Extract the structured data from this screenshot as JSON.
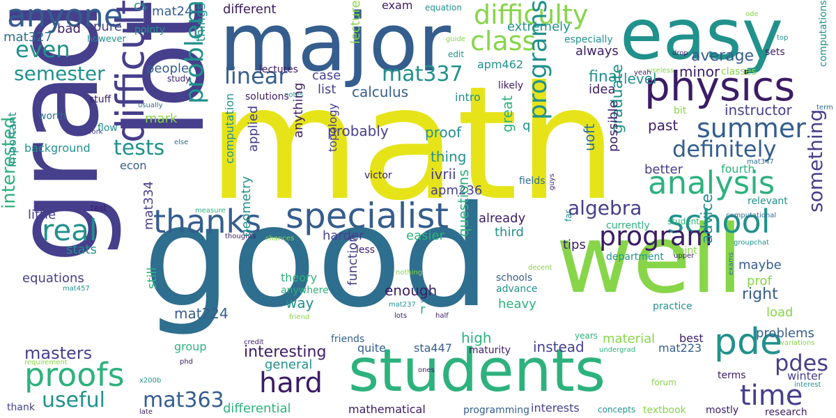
{
  "palette": {
    "purple": "#3b1c66",
    "indigo": "#453f8c",
    "blue": "#355d8e",
    "steel": "#2e6e8e",
    "teal": "#21918c",
    "green": "#2db27d",
    "lime": "#87d549",
    "yellow": "#e6e419"
  },
  "words": [
    {
      "text": "math",
      "color": "yellow"
    },
    {
      "text": "good",
      "color": "steel"
    },
    {
      "text": "well",
      "color": "lime"
    },
    {
      "text": "grad",
      "color": "indigo"
    },
    {
      "text": "lot",
      "color": "indigo"
    },
    {
      "text": "major",
      "color": "blue"
    },
    {
      "text": "easy",
      "color": "teal"
    },
    {
      "text": "students",
      "color": "green"
    },
    {
      "text": "physics",
      "color": "purple"
    },
    {
      "text": "anyone",
      "color": "blue"
    },
    {
      "text": "difficult",
      "color": "indigo"
    },
    {
      "text": "specialist",
      "color": "blue"
    },
    {
      "text": "analysis",
      "color": "green"
    },
    {
      "text": "summer",
      "color": "blue"
    },
    {
      "text": "proofs",
      "color": "green"
    },
    {
      "text": "thanks",
      "color": "blue"
    },
    {
      "text": "school",
      "color": "teal"
    },
    {
      "text": "pde",
      "color": "teal"
    },
    {
      "text": "hard",
      "color": "purple"
    },
    {
      "text": "time",
      "color": "indigo"
    },
    {
      "text": "program",
      "color": "purple"
    },
    {
      "text": "real",
      "color": "teal"
    },
    {
      "text": "even",
      "color": "teal"
    },
    {
      "text": "class",
      "color": "lime"
    },
    {
      "text": "difficulty",
      "color": "lime"
    },
    {
      "text": "definitely",
      "color": "blue"
    },
    {
      "text": "programs",
      "color": "teal"
    },
    {
      "text": "problem",
      "color": "teal"
    },
    {
      "text": "mat363",
      "color": "blue"
    },
    {
      "text": "useful",
      "color": "teal"
    },
    {
      "text": "algebra",
      "color": "indigo"
    },
    {
      "text": "linear",
      "color": "blue"
    },
    {
      "text": "tests",
      "color": "teal"
    },
    {
      "text": "semester",
      "color": "teal"
    },
    {
      "text": "mat337",
      "color": "teal"
    },
    {
      "text": "pdes",
      "color": "indigo"
    },
    {
      "text": "something",
      "color": "indigo"
    },
    {
      "text": "interested",
      "color": "green"
    },
    {
      "text": "masters",
      "color": "indigo"
    },
    {
      "text": "different",
      "color": "purple"
    },
    {
      "text": "cs",
      "color": "teal"
    },
    {
      "text": "mat244",
      "color": "blue"
    },
    {
      "text": "mat327",
      "color": "steel"
    },
    {
      "text": "bad",
      "color": "purple"
    },
    {
      "text": "pure",
      "color": "indigo"
    },
    {
      "text": "pointy",
      "color": "teal"
    },
    {
      "text": "however",
      "color": "teal"
    },
    {
      "text": "exam",
      "color": "purple"
    },
    {
      "text": "equation",
      "color": "teal"
    },
    {
      "text": "extremely",
      "color": "teal"
    },
    {
      "text": "guide",
      "color": "lime"
    },
    {
      "text": "edit",
      "color": "teal"
    },
    {
      "text": "especially",
      "color": "teal"
    },
    {
      "text": "top",
      "color": "teal"
    },
    {
      "text": "sets",
      "color": "purple"
    },
    {
      "text": "computations",
      "color": "teal"
    },
    {
      "text": "ode",
      "color": "lime"
    },
    {
      "text": "useless",
      "color": "lime"
    },
    {
      "text": "drop",
      "color": "purple"
    },
    {
      "text": "always",
      "color": "purple"
    },
    {
      "text": "average",
      "color": "blue"
    },
    {
      "text": "level",
      "color": "teal"
    },
    {
      "text": "minor",
      "color": "purple"
    },
    {
      "text": "yeah",
      "color": "purple"
    },
    {
      "text": "classes",
      "color": "lime"
    },
    {
      "text": "apm462",
      "color": "teal"
    },
    {
      "text": "final",
      "color": "teal"
    },
    {
      "text": "idea",
      "color": "purple"
    },
    {
      "text": "instructor",
      "color": "indigo"
    },
    {
      "text": "people",
      "color": "blue"
    },
    {
      "text": "things",
      "color": "teal"
    },
    {
      "text": "study",
      "color": "purple"
    },
    {
      "text": "case",
      "color": "indigo"
    },
    {
      "text": "lectures",
      "color": "purple"
    },
    {
      "text": "lecture",
      "color": "lime"
    },
    {
      "text": "list",
      "color": "indigo"
    },
    {
      "text": "calculus",
      "color": "blue"
    },
    {
      "text": "intro",
      "color": "teal"
    },
    {
      "text": "likely",
      "color": "purple"
    },
    {
      "text": "solutions",
      "color": "purple"
    },
    {
      "text": "notes",
      "color": "teal"
    },
    {
      "text": "stuff",
      "color": "purple"
    },
    {
      "text": "usually",
      "color": "steel"
    },
    {
      "text": "mark",
      "color": "lime"
    },
    {
      "text": "worth",
      "color": "steel"
    },
    {
      "text": "homework",
      "color": "indigo"
    },
    {
      "text": "flow",
      "color": "teal"
    },
    {
      "text": "else",
      "color": "steel"
    },
    {
      "text": "background",
      "color": "teal"
    },
    {
      "text": "econ",
      "color": "blue"
    },
    {
      "text": "important",
      "color": "teal"
    },
    {
      "text": "probably",
      "color": "indigo"
    },
    {
      "text": "proof",
      "color": "teal"
    },
    {
      "text": "past",
      "color": "purple"
    },
    {
      "text": "bit",
      "color": "lime"
    },
    {
      "text": "term",
      "color": "steel"
    },
    {
      "text": "q",
      "color": "teal"
    },
    {
      "text": "great",
      "color": "green"
    },
    {
      "text": "thing",
      "color": "teal"
    },
    {
      "text": "graduate",
      "color": "teal"
    },
    {
      "text": "uoft",
      "color": "steel"
    },
    {
      "text": "possible",
      "color": "purple"
    },
    {
      "text": "better",
      "color": "indigo"
    },
    {
      "text": "fourth",
      "color": "green"
    },
    {
      "text": "mat347",
      "color": "steel"
    },
    {
      "text": "ivrii",
      "color": "indigo"
    },
    {
      "text": "apm236",
      "color": "indigo"
    },
    {
      "text": "anything",
      "color": "purple"
    },
    {
      "text": "victor",
      "color": "purple"
    },
    {
      "text": "topology",
      "color": "indigo"
    },
    {
      "text": "computation",
      "color": "teal"
    },
    {
      "text": "applied",
      "color": "indigo"
    },
    {
      "text": "fields",
      "color": "steel"
    },
    {
      "text": "guys",
      "color": "purple"
    },
    {
      "text": "measure",
      "color": "green"
    },
    {
      "text": "test",
      "color": "purple"
    },
    {
      "text": "little",
      "color": "indigo"
    },
    {
      "text": "already",
      "color": "purple"
    },
    {
      "text": "student",
      "color": "green"
    },
    {
      "text": "computational",
      "color": "steel"
    },
    {
      "text": "relevant",
      "color": "teal"
    },
    {
      "text": "far",
      "color": "teal"
    },
    {
      "text": "currently",
      "color": "green"
    },
    {
      "text": "third",
      "color": "teal"
    },
    {
      "text": "easier",
      "color": "green"
    },
    {
      "text": "harder",
      "color": "indigo"
    },
    {
      "text": "thoughts",
      "color": "purple"
    },
    {
      "text": "chances",
      "color": "lime"
    },
    {
      "text": "groupchat",
      "color": "teal"
    },
    {
      "text": "tips",
      "color": "purple"
    },
    {
      "text": "point",
      "color": "lime"
    },
    {
      "text": "upper",
      "color": "purple"
    },
    {
      "text": "department",
      "color": "teal"
    },
    {
      "text": "stats",
      "color": "teal"
    },
    {
      "text": "mat334",
      "color": "indigo"
    },
    {
      "text": "less",
      "color": "purple"
    },
    {
      "text": "maybe",
      "color": "blue"
    },
    {
      "text": "prof",
      "color": "lime"
    },
    {
      "text": "right",
      "color": "blue"
    },
    {
      "text": "advice",
      "color": "teal"
    },
    {
      "text": "load",
      "color": "lime"
    },
    {
      "text": "equations",
      "color": "indigo"
    },
    {
      "text": "mat457",
      "color": "teal"
    },
    {
      "text": "nothing",
      "color": "lime"
    },
    {
      "text": "decent",
      "color": "lime"
    },
    {
      "text": "exams",
      "color": "steel"
    },
    {
      "text": "theory",
      "color": "green"
    },
    {
      "text": "schools",
      "color": "blue"
    },
    {
      "text": "anywhere",
      "color": "green"
    },
    {
      "text": "advance",
      "color": "teal"
    },
    {
      "text": "enough",
      "color": "purple"
    },
    {
      "text": "questions",
      "color": "green"
    },
    {
      "text": "geometry",
      "color": "teal"
    },
    {
      "text": "way",
      "color": "teal"
    },
    {
      "text": "still",
      "color": "green"
    },
    {
      "text": "mat224",
      "color": "blue"
    },
    {
      "text": "function",
      "color": "indigo"
    },
    {
      "text": "heavy",
      "color": "green"
    },
    {
      "text": "practice",
      "color": "teal"
    },
    {
      "text": "sense",
      "color": "steel"
    },
    {
      "text": "r",
      "color": "green"
    },
    {
      "text": "half",
      "color": "purple"
    },
    {
      "text": "mat237",
      "color": "teal"
    },
    {
      "text": "lots",
      "color": "purple"
    },
    {
      "text": "friend",
      "color": "lime"
    },
    {
      "text": "high",
      "color": "green"
    },
    {
      "text": "years",
      "color": "green"
    },
    {
      "text": "problems",
      "color": "blue"
    },
    {
      "text": "winter",
      "color": "indigo"
    },
    {
      "text": "interest",
      "color": "teal"
    },
    {
      "text": "material",
      "color": "lime"
    },
    {
      "text": "best",
      "color": "purple"
    },
    {
      "text": "friends",
      "color": "blue"
    },
    {
      "text": "group",
      "color": "green"
    },
    {
      "text": "interesting",
      "color": "purple"
    },
    {
      "text": "quite",
      "color": "blue"
    },
    {
      "text": "sta447",
      "color": "blue"
    },
    {
      "text": "mat223",
      "color": "blue"
    },
    {
      "text": "instead",
      "color": "indigo"
    },
    {
      "text": "maturity",
      "color": "purple"
    },
    {
      "text": "undergrad",
      "color": "green"
    },
    {
      "text": "variations",
      "color": "lime"
    },
    {
      "text": "general",
      "color": "teal"
    },
    {
      "text": "credit",
      "color": "purple"
    },
    {
      "text": "phd",
      "color": "purple"
    },
    {
      "text": "requirement",
      "color": "lime"
    },
    {
      "text": "x200b",
      "color": "teal"
    },
    {
      "text": "ones",
      "color": "purple"
    },
    {
      "text": "forum",
      "color": "lime"
    },
    {
      "text": "terms",
      "color": "purple"
    },
    {
      "text": "thank",
      "color": "indigo"
    },
    {
      "text": "late",
      "color": "purple"
    },
    {
      "text": "differential",
      "color": "green"
    },
    {
      "text": "mathematical",
      "color": "purple"
    },
    {
      "text": "programming",
      "color": "blue"
    },
    {
      "text": "interests",
      "color": "indigo"
    },
    {
      "text": "concepts",
      "color": "teal"
    },
    {
      "text": "textbook",
      "color": "lime"
    },
    {
      "text": "mostly",
      "color": "purple"
    },
    {
      "text": "research",
      "color": "purple"
    }
  ]
}
